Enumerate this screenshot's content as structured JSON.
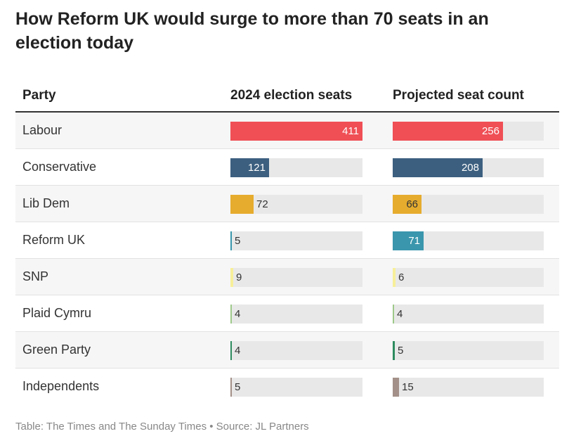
{
  "title": "How Reform UK would surge to more than 70 seats in an election today",
  "columns": {
    "party": "Party",
    "seats_2024": "2024 election seats",
    "projected": "Projected seat count"
  },
  "footer": "Table: The Times and The Sunday Times • Source: JL Partners",
  "chart_data": {
    "type": "table",
    "title": "How Reform UK would surge to more than 70 seats in an election today",
    "columns": [
      "Party",
      "2024 election seats",
      "Projected seat count"
    ],
    "col1_max": 411,
    "col2_max": 350,
    "rows": [
      {
        "party": "Labour",
        "seats_2024": 411,
        "projected": 256,
        "color": "#ef4f55"
      },
      {
        "party": "Conservative",
        "seats_2024": 121,
        "projected": 208,
        "color": "#3c5f7f"
      },
      {
        "party": "Lib Dem",
        "seats_2024": 72,
        "projected": 66,
        "color": "#e6ac2e"
      },
      {
        "party": "Reform UK",
        "seats_2024": 5,
        "projected": 71,
        "color": "#3a96ac"
      },
      {
        "party": "SNP",
        "seats_2024": 9,
        "projected": 6,
        "color": "#f7ef9a"
      },
      {
        "party": "Plaid Cymru",
        "seats_2024": 4,
        "projected": 4,
        "color": "#9fc98a"
      },
      {
        "party": "Green Party",
        "seats_2024": 4,
        "projected": 5,
        "color": "#2d8b5f"
      },
      {
        "party": "Independents",
        "seats_2024": 5,
        "projected": 15,
        "color": "#a39088"
      }
    ]
  }
}
